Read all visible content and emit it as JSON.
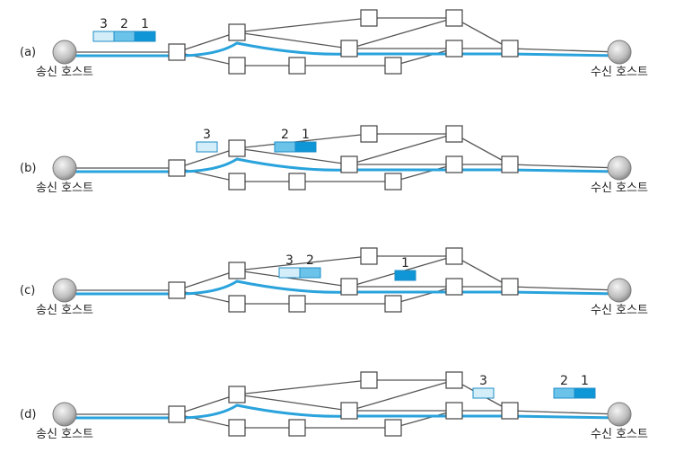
{
  "panels": [
    {
      "label": "(a)",
      "packets": [
        {
          "number": "3",
          "shade": "light"
        },
        {
          "number": "2",
          "shade": "mid"
        },
        {
          "number": "1",
          "shade": "dark"
        }
      ]
    },
    {
      "label": "(b)",
      "packets": [
        {
          "number": "3",
          "shade": "light"
        },
        {
          "number": "2",
          "shade": "mid"
        },
        {
          "number": "1",
          "shade": "dark"
        }
      ]
    },
    {
      "label": "(c)",
      "packets": [
        {
          "number": "3",
          "shade": "light"
        },
        {
          "number": "2",
          "shade": "mid"
        },
        {
          "number": "1",
          "shade": "dark"
        }
      ]
    },
    {
      "label": "(d)",
      "packets": [
        {
          "number": "3",
          "shade": "light"
        },
        {
          "number": "2",
          "shade": "mid"
        },
        {
          "number": "1",
          "shade": "dark"
        }
      ]
    }
  ],
  "sender_label": "송신 호스트",
  "receiver_label": "수신 호스트",
  "colors": {
    "path": "#2aa3dc",
    "link": "#555555",
    "packet_light": "#d4eef9",
    "packet_mid": "#6cc3ea",
    "packet_dark": "#0f96d6",
    "packet_stroke": "#1c8cc6",
    "host_fill": "#c8c8c8"
  }
}
